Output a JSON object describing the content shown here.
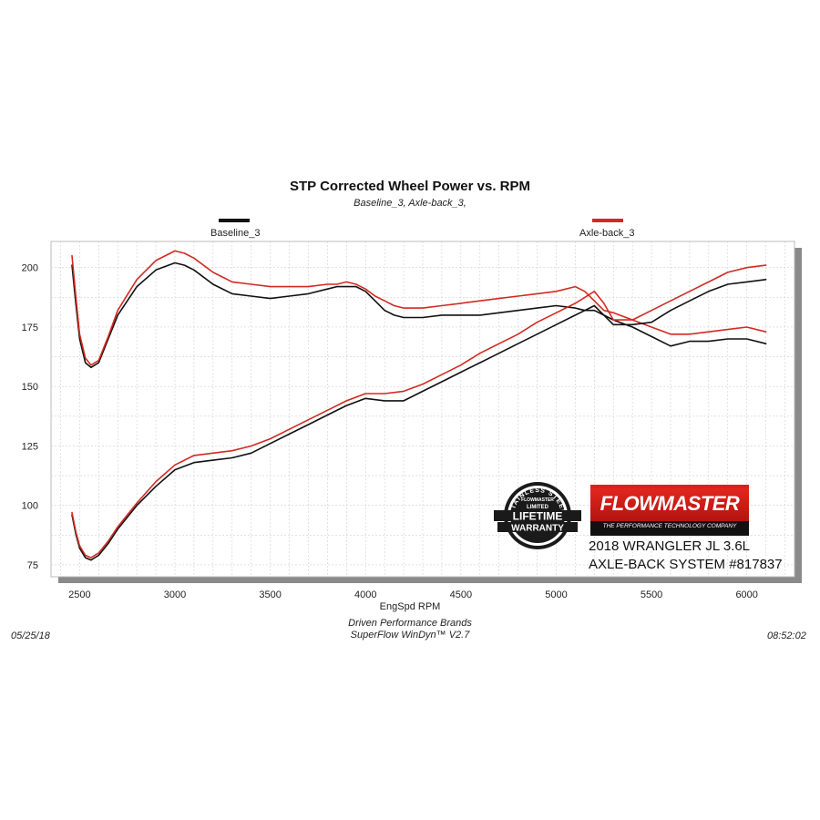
{
  "chart_data": {
    "type": "line",
    "title": "STP Corrected Wheel Power vs. RPM",
    "subtitle": "Baseline_3, Axle-back_3,",
    "xlabel": "EngSpd  RPM",
    "ylabel": "",
    "xlim": [
      2350,
      6250
    ],
    "ylim": [
      70,
      211
    ],
    "x_ticks": [
      2500,
      3000,
      3500,
      4000,
      4500,
      5000,
      5500,
      6000
    ],
    "y_ticks": [
      75,
      100,
      125,
      150,
      175,
      200
    ],
    "grid": true,
    "legend": [
      "Baseline_3",
      "Axle-back_3"
    ],
    "series": [
      {
        "name": "Baseline_3",
        "color": "#111111",
        "measure": "torque",
        "x": [
          2460,
          2480,
          2500,
          2530,
          2560,
          2600,
          2650,
          2700,
          2800,
          2900,
          3000,
          3050,
          3100,
          3200,
          3300,
          3400,
          3500,
          3600,
          3700,
          3800,
          3850,
          3900,
          3950,
          4000,
          4050,
          4100,
          4150,
          4200,
          4300,
          4400,
          4500,
          4600,
          4700,
          4800,
          4900,
          5000,
          5100,
          5150,
          5200,
          5250,
          5300,
          5400,
          5500,
          5600,
          5700,
          5800,
          5900,
          6000,
          6100
        ],
        "values": [
          201,
          185,
          170,
          160,
          158,
          160,
          170,
          180,
          192,
          199,
          202,
          201,
          199,
          193,
          189,
          188,
          187,
          188,
          189,
          191,
          192,
          192,
          192,
          190,
          186,
          182,
          180,
          179,
          179,
          180,
          180,
          180,
          181,
          182,
          183,
          184,
          183,
          182,
          182,
          180,
          178,
          175,
          171,
          167,
          169,
          169,
          170,
          170,
          168
        ]
      },
      {
        "name": "Axle-back_3",
        "color": "#d22a22",
        "measure": "torque",
        "x": [
          2460,
          2480,
          2500,
          2530,
          2560,
          2600,
          2650,
          2700,
          2800,
          2900,
          3000,
          3050,
          3100,
          3200,
          3300,
          3400,
          3500,
          3600,
          3700,
          3800,
          3850,
          3900,
          3950,
          4000,
          4050,
          4100,
          4150,
          4200,
          4300,
          4400,
          4500,
          4600,
          4700,
          4800,
          4900,
          5000,
          5100,
          5150,
          5200,
          5250,
          5300,
          5400,
          5500,
          5600,
          5700,
          5800,
          5900,
          6000,
          6100
        ],
        "values": [
          205,
          188,
          172,
          162,
          159,
          161,
          171,
          182,
          195,
          203,
          207,
          206,
          204,
          198,
          194,
          193,
          192,
          192,
          192,
          193,
          193,
          194,
          193,
          191,
          188,
          186,
          184,
          183,
          183,
          184,
          185,
          186,
          187,
          188,
          189,
          190,
          192,
          190,
          186,
          182,
          181,
          178,
          175,
          172,
          172,
          173,
          174,
          175,
          173
        ]
      },
      {
        "name": "Baseline_3",
        "color": "#111111",
        "measure": "power",
        "x": [
          2460,
          2480,
          2500,
          2530,
          2560,
          2600,
          2650,
          2700,
          2800,
          2900,
          3000,
          3100,
          3200,
          3300,
          3400,
          3500,
          3600,
          3700,
          3800,
          3900,
          4000,
          4100,
          4200,
          4300,
          4400,
          4500,
          4600,
          4700,
          4800,
          4900,
          5000,
          5100,
          5200,
          5250,
          5300,
          5400,
          5500,
          5600,
          5700,
          5800,
          5900,
          6000,
          6100
        ],
        "values": [
          96,
          88,
          82,
          78,
          77,
          79,
          84,
          90,
          100,
          108,
          115,
          118,
          119,
          120,
          122,
          126,
          130,
          134,
          138,
          142,
          145,
          144,
          144,
          148,
          152,
          156,
          160,
          164,
          168,
          172,
          176,
          180,
          184,
          180,
          176,
          176,
          177,
          182,
          186,
          190,
          193,
          194,
          195
        ]
      },
      {
        "name": "Axle-back_3",
        "color": "#d22a22",
        "measure": "power",
        "x": [
          2460,
          2480,
          2500,
          2530,
          2560,
          2600,
          2650,
          2700,
          2800,
          2900,
          3000,
          3100,
          3200,
          3300,
          3400,
          3500,
          3600,
          3700,
          3800,
          3900,
          4000,
          4100,
          4200,
          4300,
          4400,
          4500,
          4600,
          4700,
          4800,
          4900,
          5000,
          5100,
          5200,
          5250,
          5300,
          5400,
          5500,
          5600,
          5700,
          5800,
          5900,
          6000,
          6100
        ],
        "values": [
          97,
          89,
          83,
          79,
          78,
          80,
          85,
          91,
          101,
          110,
          117,
          121,
          122,
          123,
          125,
          128,
          132,
          136,
          140,
          144,
          147,
          147,
          148,
          151,
          155,
          159,
          164,
          168,
          172,
          177,
          181,
          185,
          190,
          185,
          178,
          178,
          182,
          186,
          190,
          194,
          198,
          200,
          201
        ]
      }
    ]
  },
  "footer": {
    "date": "05/25/18",
    "time": "08:52:02",
    "company": "Driven Performance Brands",
    "software": "SuperFlow WinDyn™  V2.7"
  },
  "badge": {
    "arc_top": "STAINLESS STEEL",
    "brand": "FLOWMASTER",
    "limited": "LIMITED",
    "line1": "LIFETIME",
    "line2": "WARRANTY"
  },
  "logo": {
    "name": "FLOWMASTER",
    "tagline": "THE PERFORMANCE TECHNOLOGY COMPANY",
    "accent_color": "#d9221c"
  },
  "product": {
    "line1": "2018 WRANGLER JL 3.6L",
    "line2": "AXLE-BACK SYSTEM #817837"
  }
}
